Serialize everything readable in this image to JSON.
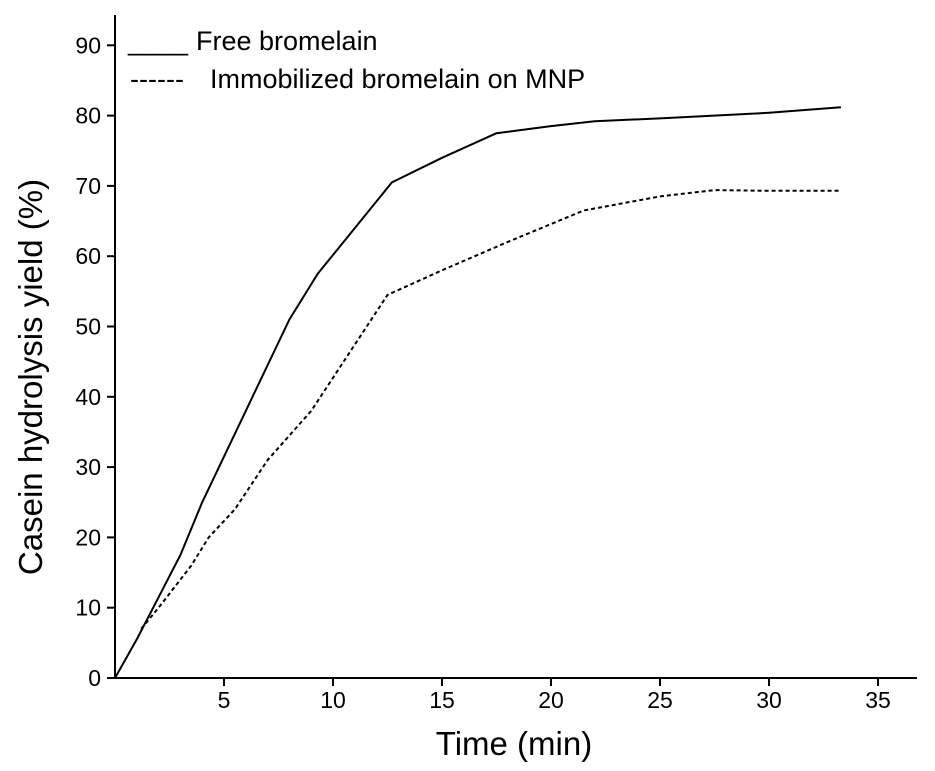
{
  "chart_data": {
    "type": "line",
    "title": "",
    "xlabel": "Time (min)",
    "ylabel": "Casein hydrolysis yield (%)",
    "xlim": [
      0,
      37
    ],
    "ylim": [
      0,
      92
    ],
    "xticks": [
      5,
      10,
      15,
      20,
      25,
      30,
      35
    ],
    "yticks": [
      0,
      10,
      20,
      30,
      40,
      50,
      60,
      70,
      80,
      90
    ],
    "grid": false,
    "legend_position": "top-left",
    "series": [
      {
        "name": "Free bromelain",
        "style": "solid",
        "legend_marker": "____",
        "x": [
          0,
          1,
          2,
          3,
          4,
          5,
          6,
          7,
          8,
          9.3,
          11,
          12.7,
          15,
          17.5,
          20,
          22,
          25,
          30,
          33.3
        ],
        "y": [
          0,
          5.5,
          11.5,
          17.5,
          25,
          31.5,
          38,
          44.5,
          51,
          57.5,
          64,
          70.5,
          74,
          77.5,
          78.5,
          79.2,
          79.6,
          80.4,
          81.2
        ]
      },
      {
        "name": "Immobilized bromelain on MNP",
        "style": "dashed",
        "legend_marker": "------",
        "x": [
          1.2,
          2,
          3.5,
          4.3,
          5.5,
          7,
          9,
          12.5,
          15,
          18,
          21.5,
          25,
          27.5,
          30,
          33.3
        ],
        "y": [
          7,
          10,
          16,
          20,
          24,
          31,
          38,
          54.5,
          58,
          62,
          66.5,
          68.5,
          69.4,
          69.3,
          69.3
        ]
      }
    ]
  }
}
